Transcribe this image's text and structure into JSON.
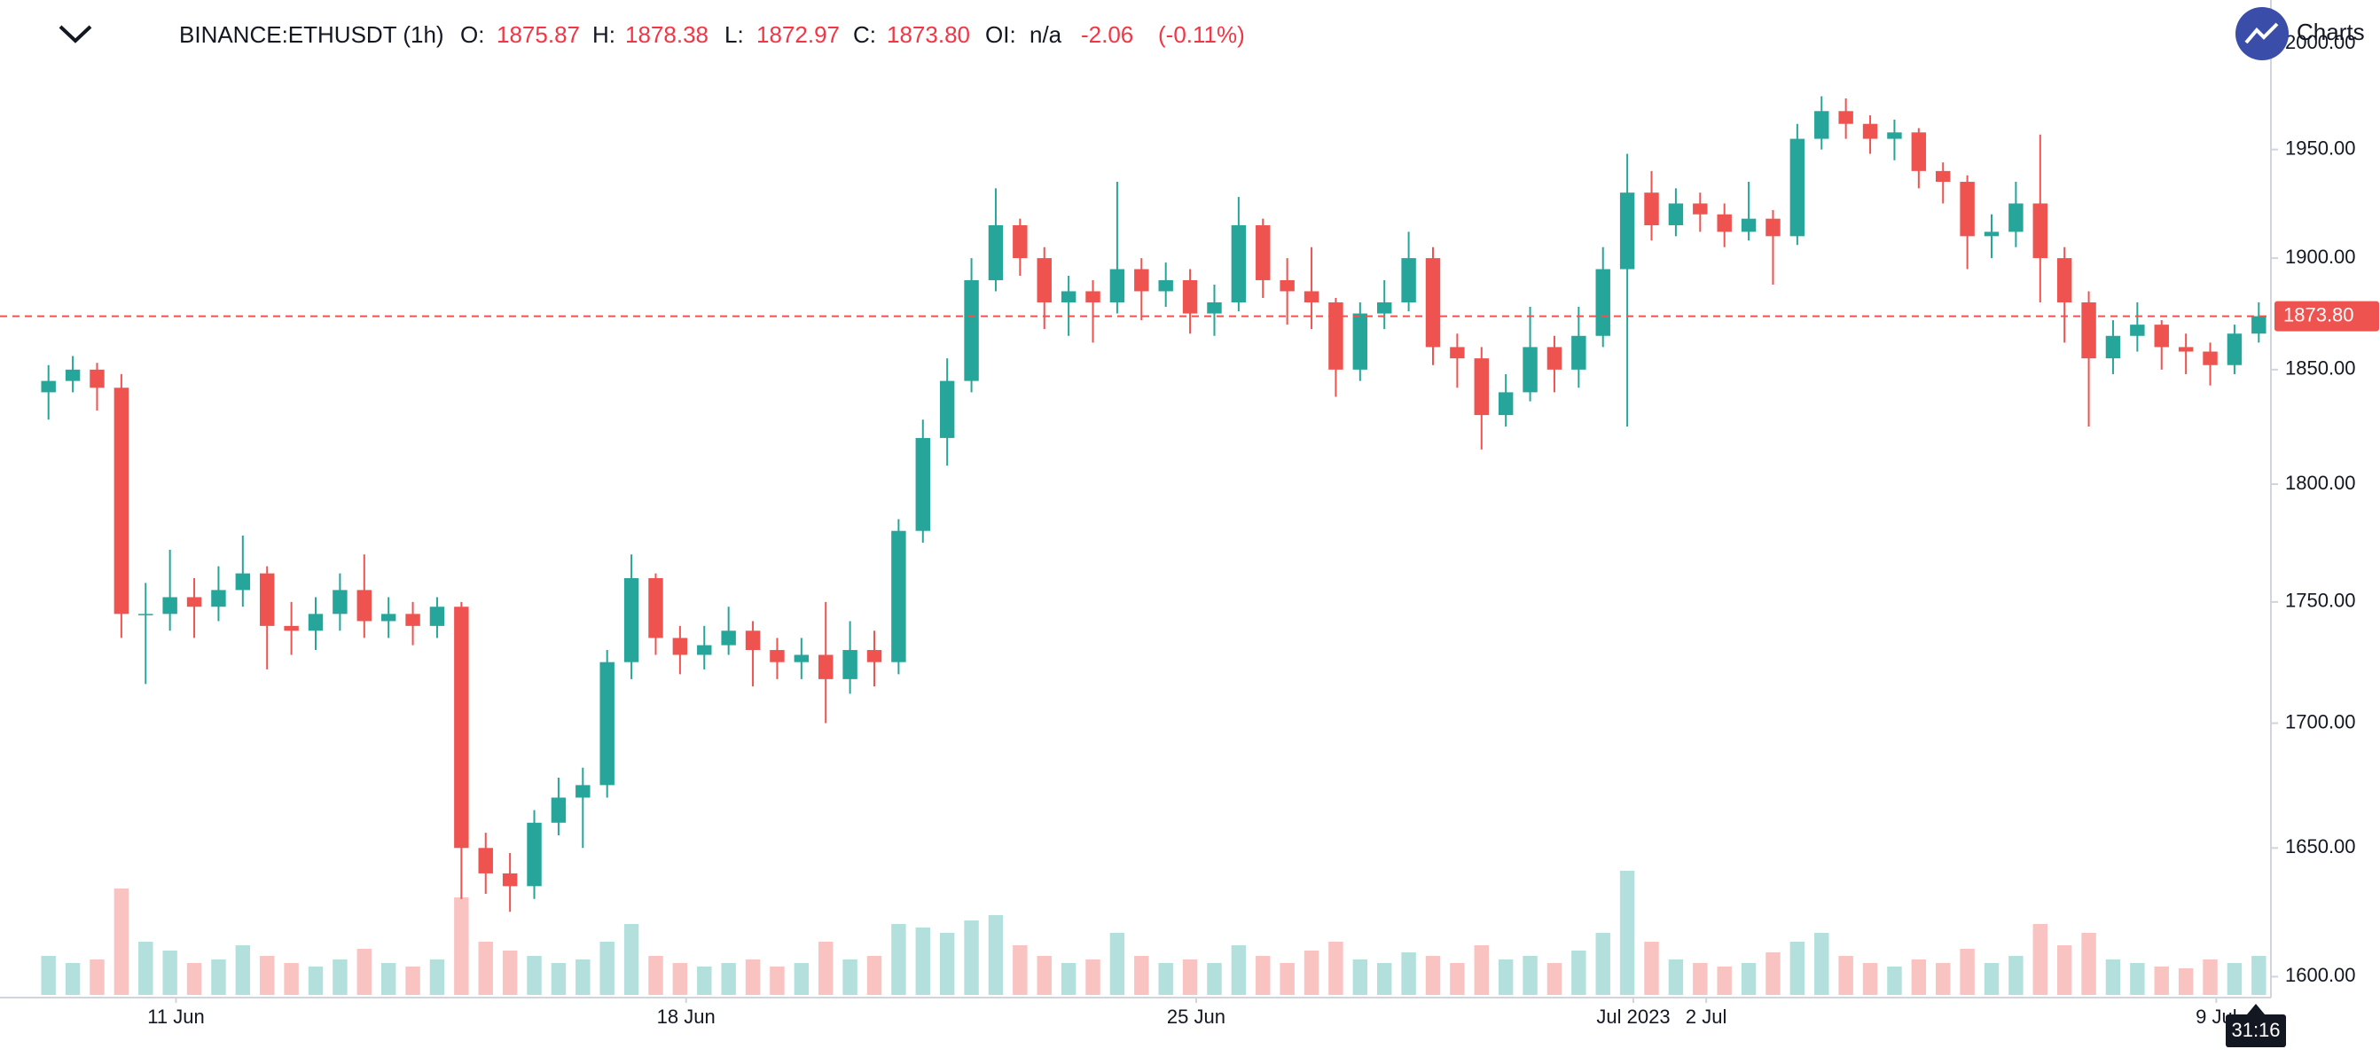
{
  "header": {
    "symbol": "BINANCE:ETHUSDT (1h)",
    "ohlc": [
      {
        "label": "O:",
        "value": "1875.87"
      },
      {
        "label": "H:",
        "value": "1878.38"
      },
      {
        "label": "L:",
        "value": "1872.97"
      },
      {
        "label": "C:",
        "value": "1873.80"
      }
    ],
    "oi_label": "OI:",
    "oi_value": "n/a",
    "change": "-2.06",
    "change_percent": "(-0.11%)"
  },
  "branding": "Charts",
  "countdown": "31:16",
  "chart_data": {
    "type": "candlestick",
    "log_scale": true,
    "up_color": "#26a69a",
    "down_color": "#ef5350",
    "open": [
      1840,
      1845,
      1850,
      1842,
      1745,
      1745,
      1752,
      1748,
      1755,
      1762,
      1740,
      1738,
      1745,
      1755,
      1742,
      1745,
      1740,
      1748,
      1650,
      1640,
      1635,
      1660,
      1670,
      1675,
      1725,
      1760,
      1735,
      1728,
      1732,
      1738,
      1730,
      1725,
      1728,
      1718,
      1730,
      1725,
      1780,
      1820,
      1845,
      1890,
      1915,
      1900,
      1880,
      1885,
      1880,
      1895,
      1885,
      1890,
      1875,
      1880,
      1915,
      1890,
      1885,
      1880,
      1850,
      1875,
      1880,
      1900,
      1860,
      1855,
      1830,
      1840,
      1860,
      1850,
      1865,
      1895,
      1930,
      1915,
      1925,
      1920,
      1912,
      1918,
      1910,
      1955,
      1968,
      1962,
      1955,
      1958,
      1940,
      1935,
      1910,
      1912,
      1925,
      1900,
      1880,
      1855,
      1865,
      1870,
      1860,
      1858,
      1852,
      1866
    ],
    "high": [
      1852,
      1856,
      1853,
      1848,
      1758,
      1772,
      1760,
      1765,
      1778,
      1765,
      1750,
      1752,
      1762,
      1770,
      1752,
      1750,
      1752,
      1750,
      1656,
      1648,
      1665,
      1678,
      1682,
      1730,
      1770,
      1762,
      1740,
      1740,
      1748,
      1742,
      1735,
      1735,
      1750,
      1742,
      1738,
      1785,
      1828,
      1855,
      1900,
      1932,
      1918,
      1905,
      1892,
      1890,
      1935,
      1900,
      1898,
      1895,
      1888,
      1928,
      1918,
      1900,
      1905,
      1882,
      1880,
      1890,
      1912,
      1905,
      1866,
      1860,
      1848,
      1878,
      1865,
      1878,
      1905,
      1948,
      1940,
      1932,
      1930,
      1925,
      1935,
      1922,
      1962,
      1975,
      1974,
      1966,
      1964,
      1960,
      1944,
      1938,
      1920,
      1935,
      1957,
      1905,
      1885,
      1872,
      1880,
      1872,
      1866,
      1862,
      1870,
      1880
    ],
    "low": [
      1828,
      1840,
      1832,
      1735,
      1716,
      1738,
      1735,
      1742,
      1748,
      1722,
      1728,
      1730,
      1738,
      1735,
      1735,
      1732,
      1735,
      1630,
      1632,
      1625,
      1630,
      1655,
      1650,
      1670,
      1718,
      1728,
      1720,
      1722,
      1728,
      1715,
      1718,
      1718,
      1700,
      1712,
      1715,
      1720,
      1775,
      1808,
      1840,
      1885,
      1892,
      1868,
      1865,
      1862,
      1875,
      1872,
      1878,
      1866,
      1865,
      1876,
      1882,
      1870,
      1868,
      1838,
      1845,
      1868,
      1876,
      1852,
      1842,
      1815,
      1825,
      1836,
      1840,
      1842,
      1860,
      1825,
      1908,
      1910,
      1912,
      1905,
      1908,
      1888,
      1906,
      1950,
      1955,
      1948,
      1945,
      1932,
      1925,
      1895,
      1900,
      1905,
      1880,
      1862,
      1825,
      1848,
      1858,
      1850,
      1848,
      1843,
      1848,
      1862
    ],
    "close": [
      1845,
      1850,
      1842,
      1745,
      1745,
      1752,
      1748,
      1755,
      1762,
      1740,
      1738,
      1745,
      1755,
      1742,
      1745,
      1740,
      1748,
      1650,
      1640,
      1635,
      1660,
      1670,
      1675,
      1725,
      1760,
      1735,
      1728,
      1732,
      1738,
      1730,
      1725,
      1728,
      1718,
      1730,
      1725,
      1780,
      1820,
      1845,
      1890,
      1915,
      1900,
      1880,
      1885,
      1880,
      1895,
      1885,
      1890,
      1875,
      1880,
      1915,
      1890,
      1885,
      1880,
      1850,
      1875,
      1880,
      1900,
      1860,
      1855,
      1830,
      1840,
      1860,
      1850,
      1865,
      1895,
      1930,
      1915,
      1925,
      1920,
      1912,
      1918,
      1910,
      1955,
      1968,
      1962,
      1955,
      1958,
      1940,
      1935,
      1910,
      1912,
      1925,
      1900,
      1880,
      1855,
      1865,
      1870,
      1860,
      1858,
      1852,
      1866,
      1873.8
    ],
    "volume": [
      22,
      18,
      20,
      60,
      30,
      25,
      18,
      20,
      28,
      22,
      18,
      16,
      20,
      26,
      18,
      16,
      20,
      55,
      30,
      25,
      22,
      18,
      20,
      30,
      40,
      22,
      18,
      16,
      18,
      20,
      16,
      18,
      30,
      20,
      22,
      40,
      38,
      35,
      42,
      45,
      28,
      22,
      18,
      20,
      35,
      22,
      18,
      20,
      18,
      28,
      22,
      18,
      25,
      30,
      20,
      18,
      24,
      22,
      18,
      28,
      20,
      22,
      18,
      25,
      35,
      70,
      30,
      20,
      18,
      16,
      18,
      24,
      30,
      35,
      22,
      18,
      16,
      20,
      18,
      26,
      18,
      22,
      40,
      28,
      35,
      20,
      18,
      16,
      15,
      20,
      18,
      22
    ],
    "xlim": [
      0,
      92
    ],
    "xticks": [
      {
        "value": 5.75,
        "label": "11 Jun"
      },
      {
        "value": 26.75,
        "label": "18 Jun"
      },
      {
        "value": 47.75,
        "label": "25 Jun"
      },
      {
        "value": 65.75,
        "label": "Jul 2023"
      },
      {
        "value": 68.75,
        "label": "2 Jul"
      },
      {
        "value": 89.75,
        "label": "9 Jul"
      }
    ],
    "ylim": [
      1592,
      2021
    ],
    "yticks": [
      {
        "value": 1600,
        "label": "1600.00"
      },
      {
        "value": 1650,
        "label": "1650.00"
      },
      {
        "value": 1700,
        "label": "1700.00"
      },
      {
        "value": 1750,
        "label": "1750.00"
      },
      {
        "value": 1800,
        "label": "1800.00"
      },
      {
        "value": 1850,
        "label": "1850.00"
      },
      {
        "value": 1900,
        "label": "1900.00"
      },
      {
        "value": 1950,
        "label": "1950.00"
      },
      {
        "value": 2000,
        "label": "2000.00"
      }
    ],
    "last_price": {
      "value": 1873.8,
      "label": "1873.80"
    }
  }
}
